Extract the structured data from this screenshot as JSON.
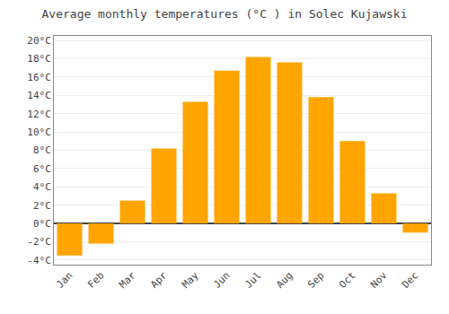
{
  "chart_data": {
    "type": "bar",
    "title": "Average monthly temperatures (°C ) in Solec Kujawski",
    "categories": [
      "Jan",
      "Feb",
      "Mar",
      "Apr",
      "May",
      "Jun",
      "Jul",
      "Aug",
      "Sep",
      "Oct",
      "Nov",
      "Dec"
    ],
    "values": [
      -3.5,
      -2.2,
      2.5,
      8.2,
      13.3,
      16.7,
      18.2,
      17.6,
      13.8,
      9.0,
      3.3,
      -1.0
    ],
    "color": "#FFA500",
    "ylim": [
      -4.5,
      20.5
    ],
    "yticks": [
      {
        "value": -4,
        "label": "-4°C"
      },
      {
        "value": -2,
        "label": "-2°C"
      },
      {
        "value": 0,
        "label": "0°C"
      },
      {
        "value": 2,
        "label": "2°C"
      },
      {
        "value": 4,
        "label": "4°C"
      },
      {
        "value": 6,
        "label": "6°C"
      },
      {
        "value": 8,
        "label": "8°C"
      },
      {
        "value": 10,
        "label": "10°C"
      },
      {
        "value": 12,
        "label": "12°C"
      },
      {
        "value": 14,
        "label": "14°C"
      },
      {
        "value": 16,
        "label": "16°C"
      },
      {
        "value": 18,
        "label": "18°C"
      },
      {
        "value": 20,
        "label": "20°C"
      }
    ],
    "grid": true
  }
}
